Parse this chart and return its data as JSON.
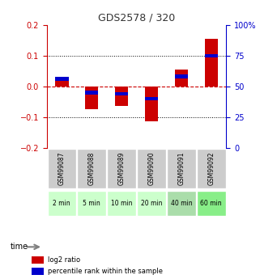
{
  "title": "GDS2578 / 320",
  "samples": [
    "GSM99087",
    "GSM99088",
    "GSM99089",
    "GSM99090",
    "GSM99091",
    "GSM99092"
  ],
  "times": [
    "2 min",
    "5 min",
    "10 min",
    "20 min",
    "40 min",
    "60 min"
  ],
  "log2_ratio": [
    0.025,
    -0.075,
    -0.065,
    -0.115,
    0.055,
    0.155
  ],
  "percentile_rank": [
    56,
    45,
    44,
    40,
    58,
    75
  ],
  "ylim_left": [
    -0.2,
    0.2
  ],
  "ylim_right": [
    0,
    100
  ],
  "yticks_left": [
    -0.2,
    -0.1,
    0.0,
    0.1,
    0.2
  ],
  "yticks_right": [
    0,
    25,
    50,
    75,
    100
  ],
  "bar_color_red": "#cc0000",
  "bar_color_blue": "#0000cc",
  "grid_color": "#000000",
  "zero_line_color": "#cc0000",
  "label_bg_gray": "#cccccc",
  "label_bg_green_light": "#ccffcc",
  "label_bg_green_dark": "#88ee88",
  "time_row_colors": [
    "#ccffcc",
    "#ccffcc",
    "#ccffcc",
    "#ccffcc",
    "#aaddaa",
    "#88ee88"
  ],
  "legend_red_label": "log2 ratio",
  "legend_blue_label": "percentile rank within the sample",
  "title_color": "#333333",
  "left_axis_color": "#cc0000",
  "right_axis_color": "#0000cc"
}
